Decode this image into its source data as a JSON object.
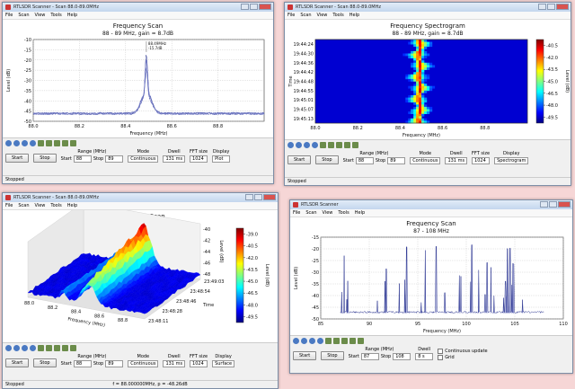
{
  "windows": [
    {
      "title": "RTLSDR Scanner - Scan 88.0-89.0MHz",
      "menu": [
        "File",
        "Scan",
        "View",
        "Tools",
        "Help"
      ],
      "plot": {
        "type": "line",
        "title": "Frequency Scan",
        "subtitle": "88 - 89 MHz, gain = 8.7dB",
        "ylabel": "Level (dB)",
        "xlabel": "Frequency (MHz)",
        "yticks": [
          "-10",
          "-15",
          "-20",
          "-25",
          "-30",
          "-35",
          "-40",
          "-45",
          "-50"
        ],
        "xticks": [
          "88.0",
          "88.2",
          "88.4",
          "88.6",
          "88.8"
        ],
        "annotation": [
          "88.49MHz",
          "-15.7dB"
        ]
      },
      "controls": {
        "buttons": [
          "Start",
          "Stop"
        ],
        "range": {
          "label": "Range (MHz)",
          "start": "Start",
          "start_value": "88",
          "stop": "Stop",
          "stop_value": "89"
        },
        "fields": [
          {
            "label": "Mode",
            "value": "Continuous"
          },
          {
            "label": "Dwell",
            "value": "131 ms"
          },
          {
            "label": "FFT size",
            "value": "1024"
          },
          {
            "label": "Display",
            "value": "Plot"
          }
        ]
      },
      "status": [
        "Stopped"
      ]
    },
    {
      "title": "RTLSDR Scanner - Scan 88.0-89.0MHz",
      "menu": [
        "File",
        "Scan",
        "View",
        "Tools",
        "Help"
      ],
      "plot": {
        "type": "spectrogram",
        "title": "Frequency Spectrogram",
        "subtitle": "88 - 89 MHz, gain = 8.7dB",
        "ylabel": "Time",
        "xlabel": "Frequency (MHz)",
        "yticks": [
          "19:44:24",
          "19:44:30",
          "19:44:36",
          "19:44:42",
          "19:44:48",
          "19:44:55",
          "19:45:01",
          "19:45:07",
          "19:45:13"
        ],
        "xticks": [
          "88.0",
          "88.2",
          "88.4",
          "88.6",
          "88.8"
        ],
        "cbticks": [
          "-40.5",
          "-42.0",
          "-43.5",
          "-45.0",
          "-46.5",
          "-48.0",
          "-49.5"
        ],
        "cblabel": "Level (dB)"
      },
      "controls": {
        "buttons": [
          "Start",
          "Stop"
        ],
        "range": {
          "label": "Range (MHz)",
          "start": "Start",
          "start_value": "88",
          "stop": "Stop",
          "stop_value": "89"
        },
        "fields": [
          {
            "label": "Mode",
            "value": "Continuous"
          },
          {
            "label": "Dwell",
            "value": "131 ms"
          },
          {
            "label": "FFT size",
            "value": "1024"
          },
          {
            "label": "Display",
            "value": "Spectrogram"
          }
        ]
      },
      "status": [
        "Stopped"
      ]
    },
    {
      "title": "RTLSDR Scanner - Scan 88.0-89.0MHz",
      "menu": [
        "File",
        "Scan",
        "View",
        "Tools",
        "Help"
      ],
      "plot": {
        "type": "surface",
        "title": "Frequency Scan",
        "subtitle": "88 - 89 MHz, gain = 8.7dB",
        "ylabel": "Time",
        "xlabel": "Frequency (MHz)",
        "zlabel": "Level (dB)",
        "zticks": [
          "-40",
          "-42",
          "-44",
          "-46",
          "-48"
        ],
        "yticks": [
          "23:48:11",
          "23:48:28",
          "23:48:46",
          "23:48:54",
          "23:49:03"
        ],
        "xticks": [
          "88.0",
          "88.2",
          "88.4",
          "88.6",
          "88.8"
        ],
        "cbticks": [
          "-39.0",
          "-40.5",
          "-42.0",
          "-43.5",
          "-45.0",
          "-46.5",
          "-48.0",
          "-49.5"
        ],
        "cblabel": "Level (dB)"
      },
      "controls": {
        "buttons": [
          "Start",
          "Stop"
        ],
        "range": {
          "label": "Range (MHz)",
          "start": "Start",
          "start_value": "88",
          "stop": "Stop",
          "stop_value": "89"
        },
        "fields": [
          {
            "label": "Mode",
            "value": "Continuous"
          },
          {
            "label": "Dwell",
            "value": "131 ms"
          },
          {
            "label": "FFT size",
            "value": "1024"
          },
          {
            "label": "Display",
            "value": "Surface"
          }
        ]
      },
      "status": [
        "Stopped",
        "f = 88.000000MHz, p = -48.26dB"
      ]
    },
    {
      "title": "RTLSDR Scanner",
      "menu": [
        "File",
        "Scan",
        "View",
        "Tools",
        "Help"
      ],
      "plot": {
        "type": "peaks",
        "title": "Frequency Scan",
        "subtitle": "87 - 108 MHz",
        "ylabel": "Level (dB)",
        "xlabel": "Frequency (MHz)",
        "yticks": [
          "-15",
          "-20",
          "-25",
          "-30",
          "-35",
          "-40",
          "-45",
          "-50"
        ],
        "xticks": [
          "85",
          "90",
          "95",
          "100",
          "105",
          "110"
        ]
      },
      "controls": {
        "buttons": [
          "Start",
          "Stop"
        ],
        "range": {
          "label": "Range (MHz)",
          "start": "Start",
          "start_value": "87",
          "stop": "Stop",
          "stop_value": "108"
        },
        "fields": [
          {
            "label": "Dwell",
            "value": "8 s"
          }
        ],
        "checks": [
          "Continuous update",
          "Grid"
        ]
      },
      "status": []
    }
  ]
}
